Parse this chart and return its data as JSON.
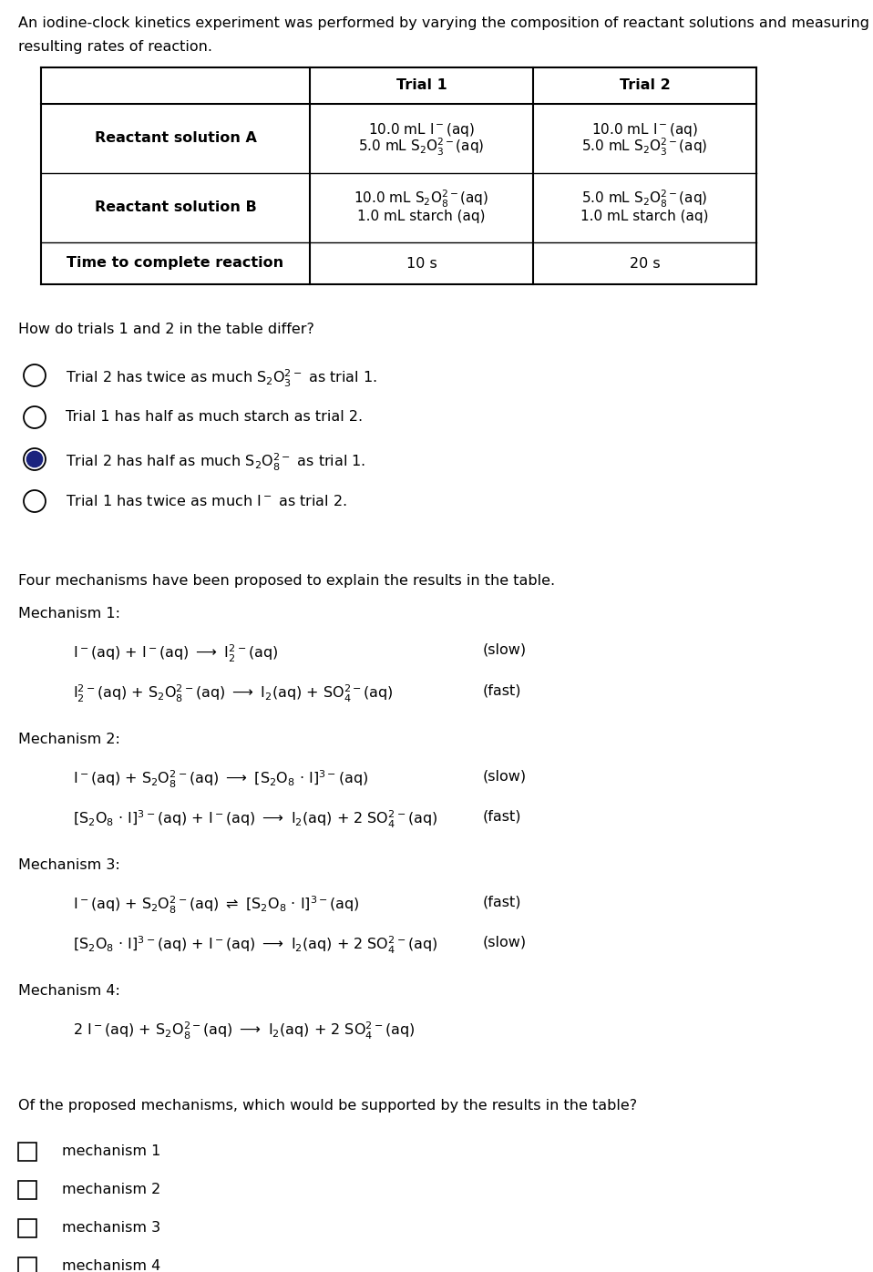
{
  "bg_color": "#ffffff",
  "text_color": "#000000",
  "font_size": 11.5,
  "title_line1": "An iodine-clock kinetics experiment was performed by varying the composition of reactant solutions and measuring the",
  "title_line2": "resulting rates of reaction.",
  "table_headers": [
    "Trial 1",
    "Trial 2"
  ],
  "row_A_label": "Reactant solution A",
  "row_A_t1_line1": "10.0 mL I$^-$(aq)",
  "row_A_t1_line2": "5.0 mL S$_2$O$_3^{2-}$(aq)",
  "row_A_t2_line1": "10.0 mL I$^-$(aq)",
  "row_A_t2_line2": "5.0 mL S$_2$O$_3^{2-}$(aq)",
  "row_B_label": "Reactant solution B",
  "row_B_t1_line1": "10.0 mL S$_2$O$_8^{2-}$(aq)",
  "row_B_t1_line2": "1.0 mL starch (aq)",
  "row_B_t2_line1": "5.0 mL S$_2$O$_8^{2-}$(aq)",
  "row_B_t2_line2": "1.0 mL starch (aq)",
  "row_T_label": "Time to complete reaction",
  "row_T_t1": "10 s",
  "row_T_t2": "20 s",
  "question1": "How do trials 1 and 2 in the table differ?",
  "q1_options": [
    {
      "text": "Trial 2 has twice as much S$_2$O$_3^{2-}$ as trial 1.",
      "selected": false
    },
    {
      "text": "Trial 1 has half as much starch as trial 2.",
      "selected": false
    },
    {
      "text": "Trial 2 has half as much S$_2$O$_8^{2-}$ as trial 1.",
      "selected": true
    },
    {
      "text": "Trial 1 has twice as much I$^-$ as trial 2.",
      "selected": false
    }
  ],
  "mechanisms_intro": "Four mechanisms have been proposed to explain the results in the table.",
  "mechanisms": [
    {
      "label": "Mechanism 1:",
      "steps": [
        {
          "eq": "I$^-$(aq) + I$^-$(aq) $\\longrightarrow$ I$_2^{2-}$(aq)",
          "rate": "(slow)"
        },
        {
          "eq": "I$_2^{2-}$(aq) + S$_2$O$_8^{2-}$(aq) $\\longrightarrow$ I$_2$(aq) + SO$_4^{2-}$(aq)",
          "rate": "(fast)"
        }
      ]
    },
    {
      "label": "Mechanism 2:",
      "steps": [
        {
          "eq": "I$^-$(aq) + S$_2$O$_8^{2-}$(aq) $\\longrightarrow$ [S$_2$O$_8$ $\\cdot$ I]$^{3-}$(aq)",
          "rate": "(slow)"
        },
        {
          "eq": "[S$_2$O$_8$ $\\cdot$ I]$^{3-}$(aq) + I$^-$(aq) $\\longrightarrow$ I$_2$(aq) + 2 SO$_4^{2-}$(aq)",
          "rate": "(fast)"
        }
      ]
    },
    {
      "label": "Mechanism 3:",
      "steps": [
        {
          "eq": "I$^-$(aq) + S$_2$O$_8^{2-}$(aq) $\\rightleftharpoons$ [S$_2$O$_8$ $\\cdot$ I]$^{3-}$(aq)",
          "rate": "(fast)"
        },
        {
          "eq": "[S$_2$O$_8$ $\\cdot$ I]$^{3-}$(aq) + I$^-$(aq) $\\longrightarrow$ I$_2$(aq) + 2 SO$_4^{2-}$(aq)",
          "rate": "(slow)"
        }
      ]
    },
    {
      "label": "Mechanism 4:",
      "steps": [
        {
          "eq": "2 I$^-$(aq) + S$_2$O$_8^{2-}$(aq) $\\longrightarrow$ I$_2$(aq) + 2 SO$_4^{2-}$(aq)",
          "rate": ""
        }
      ]
    }
  ],
  "question2": "Of the proposed mechanisms, which would be supported by the results in the table?",
  "q2_options": [
    {
      "text": "mechanism 1",
      "selected": false
    },
    {
      "text": "mechanism 2",
      "selected": false
    },
    {
      "text": "mechanism 3",
      "selected": false
    },
    {
      "text": "mechanism 4",
      "selected": false
    }
  ]
}
